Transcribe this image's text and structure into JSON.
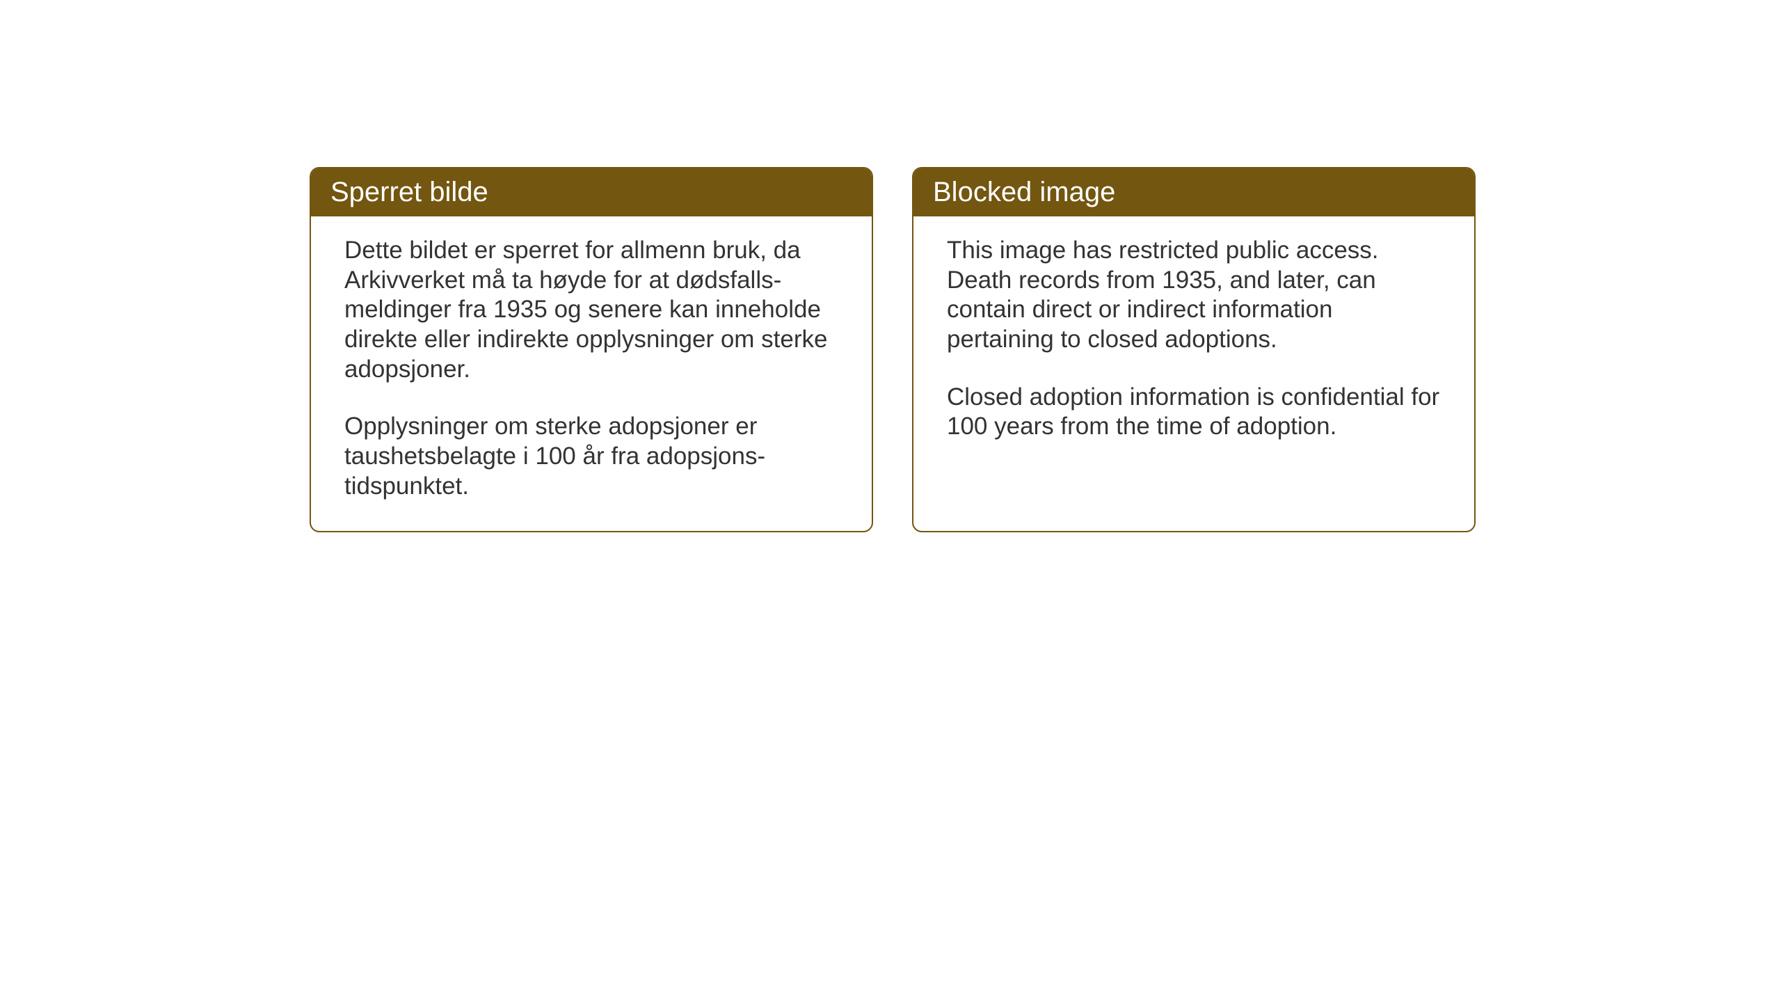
{
  "layout": {
    "background_color": "#ffffff",
    "card_border_color": "#735610",
    "header_bg_color": "#735610",
    "header_text_color": "#ffffff",
    "body_text_color": "#333333",
    "card_border_radius": 14,
    "header_fontsize": 40,
    "body_fontsize": 35
  },
  "cards": {
    "norwegian": {
      "title": "Sperret bilde",
      "paragraph1": "Dette bildet er sperret for allmenn bruk, da Arkivverket må ta høyde for at dødsfalls-meldinger fra 1935 og senere kan inneholde direkte eller indirekte opplysninger om sterke adopsjoner.",
      "paragraph2": "Opplysninger om sterke adopsjoner er taushetsbelagte i 100 år fra adopsjons-tidspunktet."
    },
    "english": {
      "title": "Blocked image",
      "paragraph1": "This image has restricted public access. Death records from 1935, and later, can contain direct or indirect information pertaining to closed adoptions.",
      "paragraph2": "Closed adoption information is confidential for 100 years from the time of adoption."
    }
  }
}
